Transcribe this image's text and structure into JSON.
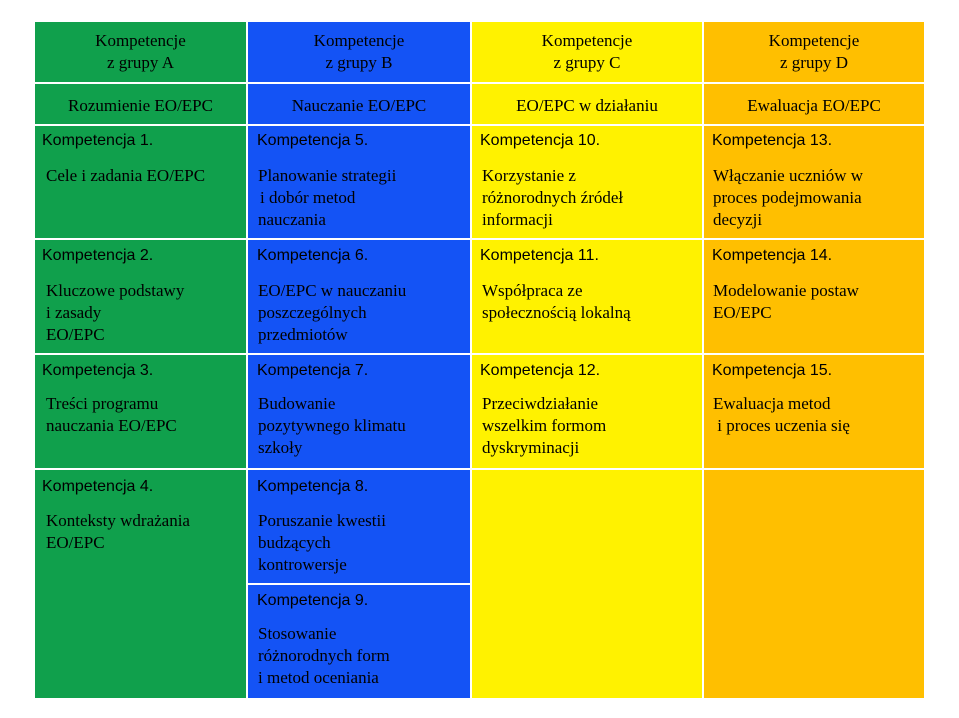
{
  "colors": {
    "green": "#10A04C",
    "blue": "#1453F5",
    "yellow": "#FFF200",
    "orange": "#FFBF00",
    "border": "#ffffff"
  },
  "header": {
    "a": {
      "line1": "Kompetencje",
      "line2": "z grupy A"
    },
    "b": {
      "line1": "Kompetencje",
      "line2": "z grupy B"
    },
    "c": {
      "line1": "Kompetencje",
      "line2": "z grupy C"
    },
    "d": {
      "line1": "Kompetencje",
      "line2": "z grupy D"
    }
  },
  "subheader": {
    "a": "Rozumienie EO/EPC",
    "b": "Nauczanie EO/EPC",
    "c": "EO/EPC w działaniu",
    "d": "Ewaluacja EO/EPC"
  },
  "col_a": [
    {
      "num": "Kompetencja 1.",
      "desc": [
        "Cele i zadania EO/EPC"
      ]
    },
    {
      "num": "Kompetencja 2.",
      "desc": [
        "Kluczowe podstawy",
        "i zasady",
        "EO/EPC"
      ]
    },
    {
      "num": "Kompetencja 3.",
      "desc": [
        "Treści programu",
        "nauczania  EO/EPC"
      ]
    },
    {
      "num": "Kompetencja 4.",
      "desc": [
        "Konteksty wdrażania",
        "EO/EPC"
      ]
    }
  ],
  "col_b": [
    {
      "num": "Kompetencja 5.",
      "desc": [
        "Planowanie strategii",
        "i dobór metod",
        "nauczania"
      ]
    },
    {
      "num": "Kompetencja 6.",
      "desc": [
        "EO/EPC w nauczaniu",
        "poszczególnych",
        "przedmiotów"
      ]
    },
    {
      "num": "Kompetencja 7.",
      "desc": [
        "Budowanie",
        "pozytywnego klimatu",
        "szkoły"
      ]
    },
    {
      "num": "Kompetencja 8.",
      "desc": [
        "Poruszanie kwestii",
        "budzących",
        "kontrowersje"
      ]
    },
    {
      "num": "Kompetencja 9.",
      "desc": [
        "Stosowanie",
        "różnorodnych form",
        "i metod oceniania"
      ]
    }
  ],
  "col_c": [
    {
      "num": "Kompetencja 10.",
      "desc": [
        "Korzystanie z",
        "różnorodnych źródeł",
        "informacji"
      ]
    },
    {
      "num": "Kompetencja 11.",
      "desc": [
        "Współpraca ze",
        "społecznością lokalną"
      ]
    },
    {
      "num": "Kompetencja 12.",
      "desc": [
        "Przeciwdziałanie",
        "wszelkim formom",
        "dyskryminacji"
      ]
    }
  ],
  "col_d": [
    {
      "num": "Kompetencja 13.",
      "desc": [
        "Włączanie  uczniów w",
        "proces podejmowania",
        "decyzji"
      ]
    },
    {
      "num": "Kompetencja 14.",
      "desc": [
        "Modelowanie postaw",
        "EO/EPC"
      ]
    },
    {
      "num": "Kompetencja 15.",
      "desc": [
        "Ewaluacja metod",
        " i proces uczenia się"
      ]
    }
  ]
}
